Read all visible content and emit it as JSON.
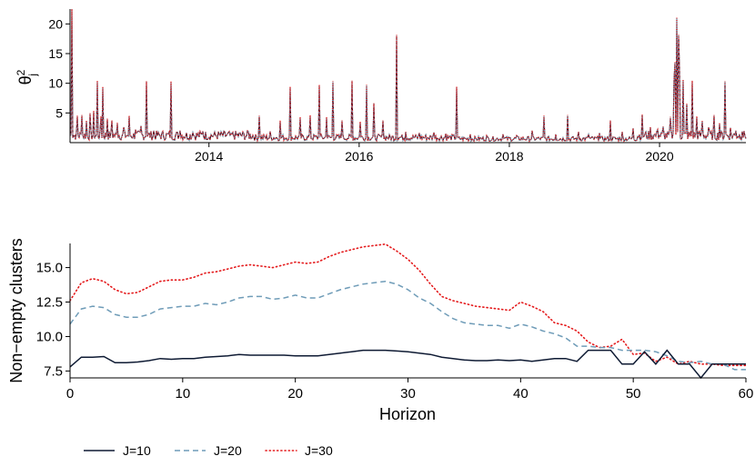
{
  "chart_data": [
    {
      "type": "line",
      "ylabel": "θ",
      "ylabel_sup": "2",
      "ylabel_sub": "j",
      "xlim": [
        2012.15,
        2021.15
      ],
      "ylim": [
        0,
        22.5
      ],
      "xticks": [
        2014,
        2016,
        2018,
        2020
      ],
      "yticks": [
        5,
        10,
        15,
        20
      ],
      "grid": false,
      "spikes": [
        {
          "x": 2012.18,
          "y": 22.5
        },
        {
          "x": 2012.25,
          "y": 4.4
        },
        {
          "x": 2012.31,
          "y": 4.5
        },
        {
          "x": 2012.37,
          "y": 3.6
        },
        {
          "x": 2012.42,
          "y": 4.8
        },
        {
          "x": 2012.47,
          "y": 5.2
        },
        {
          "x": 2012.51,
          "y": 10.3
        },
        {
          "x": 2012.56,
          "y": 4.3
        },
        {
          "x": 2012.59,
          "y": 9.3
        },
        {
          "x": 2012.65,
          "y": 3.9
        },
        {
          "x": 2012.71,
          "y": 3.6
        },
        {
          "x": 2012.78,
          "y": 3.2
        },
        {
          "x": 2012.86,
          "y": 2.6
        },
        {
          "x": 2012.94,
          "y": 4.4
        },
        {
          "x": 2013.02,
          "y": 2.2
        },
        {
          "x": 2013.1,
          "y": 2.8
        },
        {
          "x": 2013.17,
          "y": 10.2
        },
        {
          "x": 2013.27,
          "y": 2.0
        },
        {
          "x": 2013.38,
          "y": 1.9
        },
        {
          "x": 2013.5,
          "y": 10.2
        },
        {
          "x": 2013.62,
          "y": 2.0
        },
        {
          "x": 2013.78,
          "y": 1.7
        },
        {
          "x": 2013.92,
          "y": 1.9
        },
        {
          "x": 2014.08,
          "y": 1.8
        },
        {
          "x": 2014.3,
          "y": 1.6
        },
        {
          "x": 2014.52,
          "y": 1.9
        },
        {
          "x": 2014.67,
          "y": 4.4
        },
        {
          "x": 2014.82,
          "y": 1.9
        },
        {
          "x": 2014.95,
          "y": 3.6
        },
        {
          "x": 2015.08,
          "y": 9.3
        },
        {
          "x": 2015.21,
          "y": 4.2
        },
        {
          "x": 2015.35,
          "y": 4.5
        },
        {
          "x": 2015.47,
          "y": 9.6
        },
        {
          "x": 2015.56,
          "y": 4.2
        },
        {
          "x": 2015.65,
          "y": 10.2
        },
        {
          "x": 2015.77,
          "y": 3.6
        },
        {
          "x": 2015.9,
          "y": 10.3
        },
        {
          "x": 2016.02,
          "y": 3.4
        },
        {
          "x": 2016.1,
          "y": 9.6
        },
        {
          "x": 2016.2,
          "y": 6.5
        },
        {
          "x": 2016.32,
          "y": 3.6
        },
        {
          "x": 2016.5,
          "y": 18.0
        },
        {
          "x": 2016.62,
          "y": 1.8
        },
        {
          "x": 2016.8,
          "y": 1.6
        },
        {
          "x": 2017.0,
          "y": 1.7
        },
        {
          "x": 2017.15,
          "y": 1.5
        },
        {
          "x": 2017.3,
          "y": 9.3
        },
        {
          "x": 2017.48,
          "y": 1.4
        },
        {
          "x": 2017.7,
          "y": 1.2
        },
        {
          "x": 2017.92,
          "y": 1.4
        },
        {
          "x": 2018.1,
          "y": 1.2
        },
        {
          "x": 2018.3,
          "y": 2.0
        },
        {
          "x": 2018.46,
          "y": 4.4
        },
        {
          "x": 2018.62,
          "y": 1.4
        },
        {
          "x": 2018.78,
          "y": 4.5
        },
        {
          "x": 2018.92,
          "y": 1.8
        },
        {
          "x": 2019.05,
          "y": 1.4
        },
        {
          "x": 2019.2,
          "y": 1.6
        },
        {
          "x": 2019.35,
          "y": 3.6
        },
        {
          "x": 2019.5,
          "y": 1.8
        },
        {
          "x": 2019.65,
          "y": 2.4
        },
        {
          "x": 2019.77,
          "y": 4.6
        },
        {
          "x": 2019.88,
          "y": 2.6
        },
        {
          "x": 2019.98,
          "y": 2.2
        },
        {
          "x": 2020.05,
          "y": 2.7
        },
        {
          "x": 2020.14,
          "y": 4.2
        },
        {
          "x": 2020.19,
          "y": 10.6
        },
        {
          "x": 2020.21,
          "y": 13.5
        },
        {
          "x": 2020.23,
          "y": 21.0
        },
        {
          "x": 2020.25,
          "y": 18.0
        },
        {
          "x": 2020.27,
          "y": 12.5
        },
        {
          "x": 2020.31,
          "y": 10.5
        },
        {
          "x": 2020.36,
          "y": 6.5
        },
        {
          "x": 2020.43,
          "y": 10.3
        },
        {
          "x": 2020.5,
          "y": 4.3
        },
        {
          "x": 2020.57,
          "y": 3.6
        },
        {
          "x": 2020.65,
          "y": 2.6
        },
        {
          "x": 2020.73,
          "y": 4.5
        },
        {
          "x": 2020.8,
          "y": 3.2
        },
        {
          "x": 2020.87,
          "y": 10.2
        },
        {
          "x": 2020.94,
          "y": 2.5
        },
        {
          "x": 2021.02,
          "y": 2.0
        },
        {
          "x": 2021.1,
          "y": 1.9
        }
      ]
    },
    {
      "type": "line",
      "xlabel": "Horizon",
      "ylabel": "Non−empty clusters",
      "xlim": [
        0,
        60
      ],
      "ylim": [
        7,
        16.75
      ],
      "xticks": [
        0,
        10,
        20,
        30,
        40,
        50,
        60
      ],
      "yticks": [
        "7.5",
        "10.0",
        "12.5",
        "15.0"
      ],
      "grid": false,
      "legend_position": "bottom-left",
      "series": [
        {
          "name": "J=10",
          "color": "#0e1a33",
          "dash": "solid",
          "values": [
            7.8,
            8.5,
            8.5,
            8.55,
            8.1,
            8.1,
            8.15,
            8.25,
            8.4,
            8.35,
            8.4,
            8.4,
            8.5,
            8.55,
            8.6,
            8.7,
            8.65,
            8.65,
            8.65,
            8.65,
            8.6,
            8.6,
            8.6,
            8.7,
            8.8,
            8.9,
            9.0,
            9.0,
            9.0,
            8.95,
            8.9,
            8.8,
            8.7,
            8.5,
            8.4,
            8.3,
            8.25,
            8.25,
            8.3,
            8.25,
            8.3,
            8.2,
            8.3,
            8.4,
            8.4,
            8.2,
            9.0,
            9.0,
            9.0,
            8.0,
            8.0,
            8.9,
            8.0,
            9.0,
            8.0,
            8.0,
            7.0,
            8.0,
            8.0,
            8.0,
            8.0
          ]
        },
        {
          "name": "J=20",
          "color": "#6f9cb8",
          "dash": "dashed",
          "values": [
            10.9,
            12.0,
            12.2,
            12.1,
            11.6,
            11.4,
            11.4,
            11.6,
            12.0,
            12.1,
            12.2,
            12.2,
            12.4,
            12.3,
            12.5,
            12.8,
            12.9,
            12.9,
            12.7,
            12.8,
            13.0,
            12.8,
            12.8,
            13.1,
            13.4,
            13.6,
            13.8,
            13.9,
            14.0,
            13.8,
            13.4,
            12.8,
            12.4,
            11.8,
            11.3,
            11.0,
            10.9,
            10.8,
            10.8,
            10.6,
            10.9,
            10.7,
            10.4,
            10.2,
            9.9,
            9.3,
            9.3,
            9.2,
            9.2,
            9.0,
            9.0,
            9.0,
            8.9,
            8.6,
            8.2,
            8.1,
            8.2,
            8.0,
            8.0,
            7.6,
            7.6
          ]
        },
        {
          "name": "J=30",
          "color": "#e41a1c",
          "dash": "dotted",
          "values": [
            12.6,
            13.9,
            14.2,
            14.0,
            13.4,
            13.1,
            13.2,
            13.6,
            14.0,
            14.1,
            14.1,
            14.3,
            14.6,
            14.7,
            14.9,
            15.1,
            15.2,
            15.1,
            15.0,
            15.2,
            15.4,
            15.3,
            15.4,
            15.8,
            16.1,
            16.3,
            16.5,
            16.6,
            16.7,
            16.2,
            15.6,
            14.8,
            13.8,
            12.9,
            12.6,
            12.4,
            12.2,
            12.1,
            12.0,
            11.9,
            12.5,
            12.2,
            11.8,
            11.0,
            10.8,
            10.4,
            9.6,
            9.2,
            9.3,
            9.8,
            8.7,
            8.8,
            8.2,
            8.5,
            8.0,
            8.2,
            8.0,
            8.0,
            7.9,
            7.9,
            7.9
          ]
        }
      ]
    }
  ]
}
